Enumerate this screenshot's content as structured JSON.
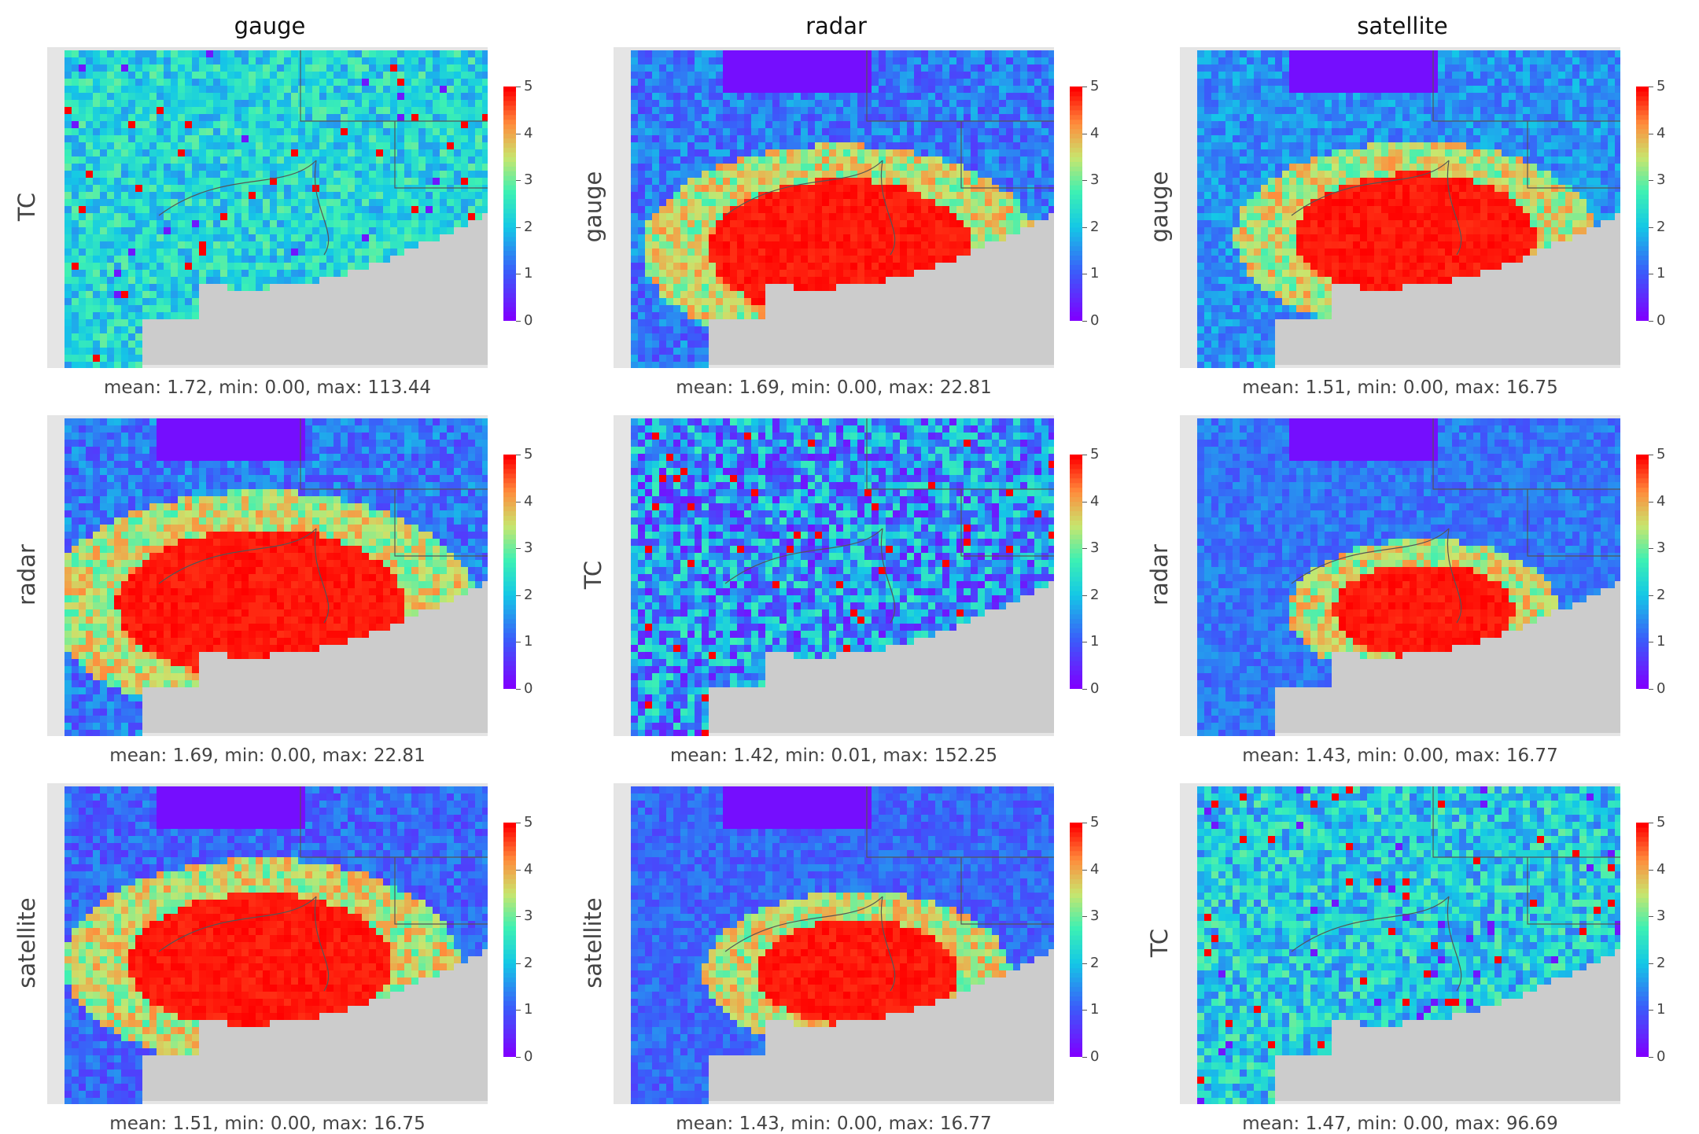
{
  "chart_data": [
    {
      "type": "heatmap",
      "col_title": "gauge",
      "row_label": "TC",
      "stats": "mean: 1.72, min: 0.00, max: 113.44",
      "colorbar_ticks": [
        "0",
        "1",
        "2",
        "3",
        "4",
        "5"
      ],
      "vmin": 0,
      "vmax": 5,
      "colormap": "rainbow"
    },
    {
      "type": "heatmap",
      "col_title": "radar",
      "row_label": "gauge",
      "stats": "mean: 1.69, min: 0.00, max: 22.81",
      "colorbar_ticks": [
        "0",
        "1",
        "2",
        "3",
        "4",
        "5"
      ],
      "vmin": 0,
      "vmax": 5,
      "colormap": "rainbow"
    },
    {
      "type": "heatmap",
      "col_title": "satellite",
      "row_label": "gauge",
      "stats": "mean: 1.51, min: 0.00, max: 16.75",
      "colorbar_ticks": [
        "0",
        "1",
        "2",
        "3",
        "4",
        "5"
      ],
      "vmin": 0,
      "vmax": 5,
      "colormap": "rainbow"
    },
    {
      "type": "heatmap",
      "col_title": "",
      "row_label": "radar",
      "stats": "mean: 1.69, min: 0.00, max: 22.81",
      "colorbar_ticks": [
        "0",
        "1",
        "2",
        "3",
        "4",
        "5"
      ],
      "vmin": 0,
      "vmax": 5,
      "colormap": "rainbow"
    },
    {
      "type": "heatmap",
      "col_title": "",
      "row_label": "TC",
      "stats": "mean: 1.42, min: 0.01, max: 152.25",
      "colorbar_ticks": [
        "0",
        "1",
        "2",
        "3",
        "4",
        "5"
      ],
      "vmin": 0,
      "vmax": 5,
      "colormap": "rainbow"
    },
    {
      "type": "heatmap",
      "col_title": "",
      "row_label": "radar",
      "stats": "mean: 1.43, min: 0.00, max: 16.77",
      "colorbar_ticks": [
        "0",
        "1",
        "2",
        "3",
        "4",
        "5"
      ],
      "vmin": 0,
      "vmax": 5,
      "colormap": "rainbow"
    },
    {
      "type": "heatmap",
      "col_title": "",
      "row_label": "satellite",
      "stats": "mean: 1.51, min: 0.00, max: 16.75",
      "colorbar_ticks": [
        "0",
        "1",
        "2",
        "3",
        "4",
        "5"
      ],
      "vmin": 0,
      "vmax": 5,
      "colormap": "rainbow"
    },
    {
      "type": "heatmap",
      "col_title": "",
      "row_label": "satellite",
      "stats": "mean: 1.43, min: 0.00, max: 16.77",
      "colorbar_ticks": [
        "0",
        "1",
        "2",
        "3",
        "4",
        "5"
      ],
      "vmin": 0,
      "vmax": 5,
      "colormap": "rainbow"
    },
    {
      "type": "heatmap",
      "col_title": "",
      "row_label": "TC",
      "stats": "mean: 1.47, min: 0.00, max: 96.69",
      "colorbar_ticks": [
        "0",
        "1",
        "2",
        "3",
        "4",
        "5"
      ],
      "vmin": 0,
      "vmax": 5,
      "colormap": "rainbow"
    }
  ],
  "column_titles": [
    "gauge",
    "radar",
    "satellite"
  ],
  "colors": {
    "no_data": "#cccccc",
    "panel_bg": "#e5e5e5",
    "border": "#555555",
    "cmap_low": "#7f00ff",
    "cmap_mid": "#19e5c6",
    "cmap_high": "#ff0000"
  }
}
